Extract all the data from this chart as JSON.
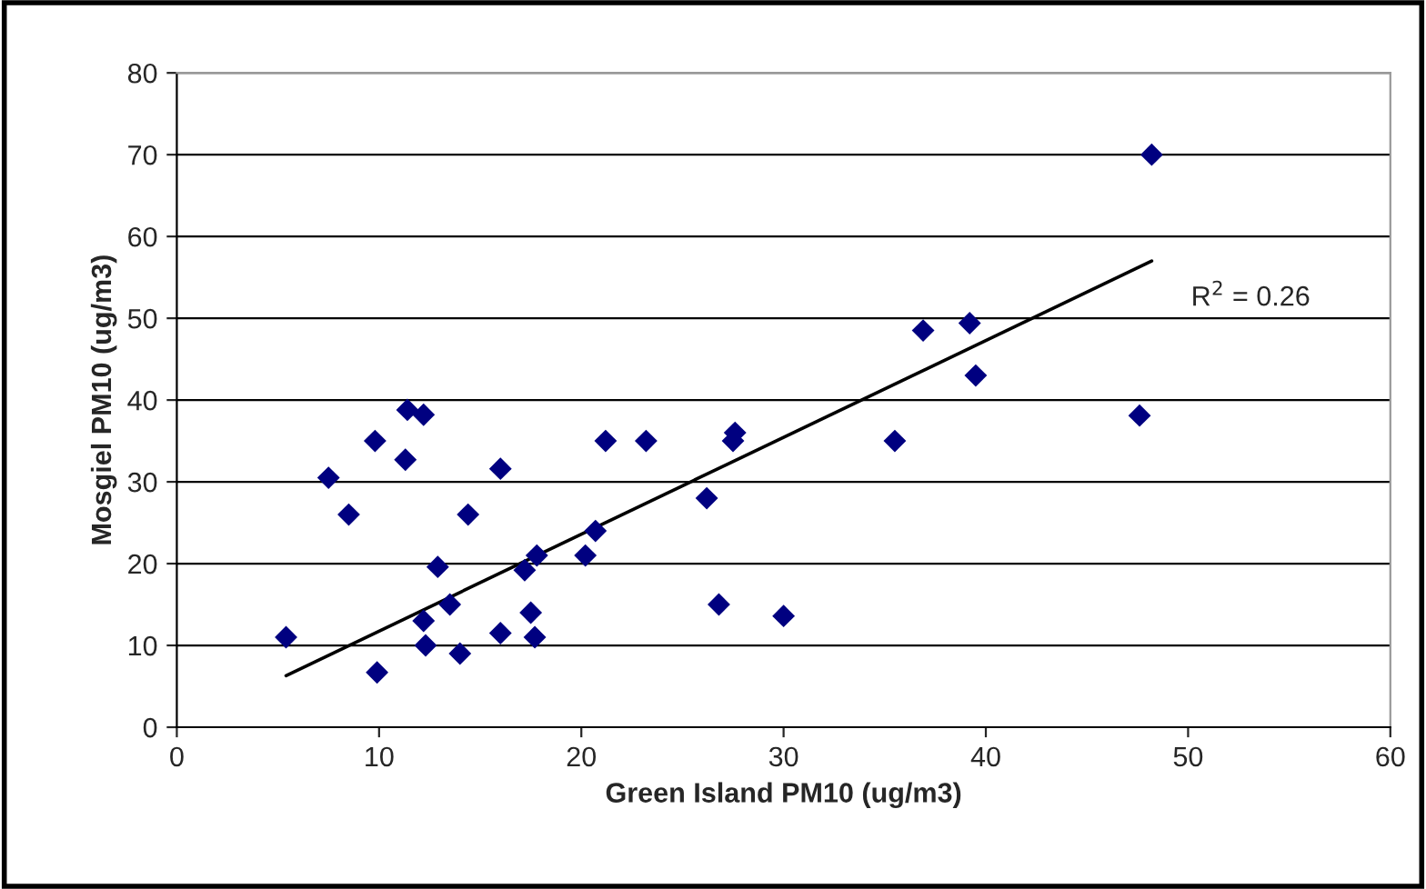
{
  "chart_data": {
    "type": "scatter",
    "xlabel": "Green Island PM10 (ug/m3)",
    "ylabel": "Mosgiel PM10 (ug/m3)",
    "xlim": [
      0,
      60
    ],
    "xticks": [
      0,
      10,
      20,
      30,
      40,
      50,
      60
    ],
    "ylim": [
      0,
      80
    ],
    "yticks": [
      0,
      10,
      20,
      30,
      40,
      50,
      60,
      70,
      80
    ],
    "grid": "y",
    "series": [
      {
        "marker": "diamond",
        "color": "#000080",
        "x": [
          5.4,
          7.5,
          8.5,
          9.8,
          9.9,
          11.4,
          11.3,
          12.2,
          12.2,
          12.3,
          12.9,
          13.5,
          14,
          14.4,
          16,
          16,
          17.2,
          17.5,
          17.7,
          17.8,
          20.2,
          20.7,
          21.2,
          23.2,
          26.2,
          26.8,
          27.5,
          27.6,
          30,
          35.5,
          36.9,
          39.2,
          39.5,
          47.6,
          48.2
        ],
        "values": [
          11,
          30.5,
          26,
          35,
          6.7,
          38.8,
          32.7,
          38.2,
          13,
          10,
          19.6,
          15,
          9,
          26,
          31.6,
          11.5,
          19.2,
          14,
          11,
          21,
          21,
          24,
          35,
          35,
          28,
          15,
          35,
          36,
          13.6,
          35,
          48.5,
          49.4,
          43,
          38.1,
          70
        ]
      },
      {
        "type": "line",
        "marker": "none",
        "color": "#000000",
        "x": [
          5.4,
          48.2
        ],
        "values": [
          6.3,
          57
        ]
      }
    ],
    "annotations": [
      "R$^{2}$ = 0.26"
    ]
  }
}
